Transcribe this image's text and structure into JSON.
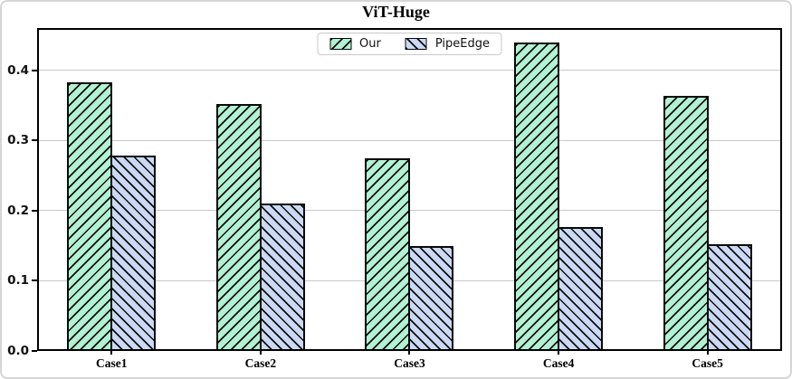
{
  "chart_data": {
    "type": "bar",
    "title": "ViT-Huge",
    "categories": [
      "Case1",
      "Case2",
      "Case3",
      "Case4",
      "Case5"
    ],
    "series": [
      {
        "name": "Our",
        "color": "#b2f1d3",
        "hatch": "/",
        "values": [
          0.383,
          0.352,
          0.274,
          0.44,
          0.363
        ]
      },
      {
        "name": "PipeEdge",
        "color": "#ccd9f4",
        "hatch": "\\",
        "values": [
          0.279,
          0.21,
          0.149,
          0.176,
          0.152
        ]
      }
    ],
    "xlabel": "",
    "ylabel": "",
    "yticks": [
      0.0,
      0.1,
      0.2,
      0.3,
      0.4
    ],
    "ytick_labels": [
      "0.0",
      "0.1",
      "0.2",
      "0.3",
      "0.4"
    ],
    "ylim": [
      0,
      0.46
    ],
    "grid": "horizontal-solid",
    "legend_position": "top-center",
    "colors": {
      "grid": "#c9c9c9",
      "spine": "#000000",
      "hatch": "#0d0d0d",
      "legend_border": "#c9c9c9",
      "card_border": "#d6d6d6"
    }
  }
}
